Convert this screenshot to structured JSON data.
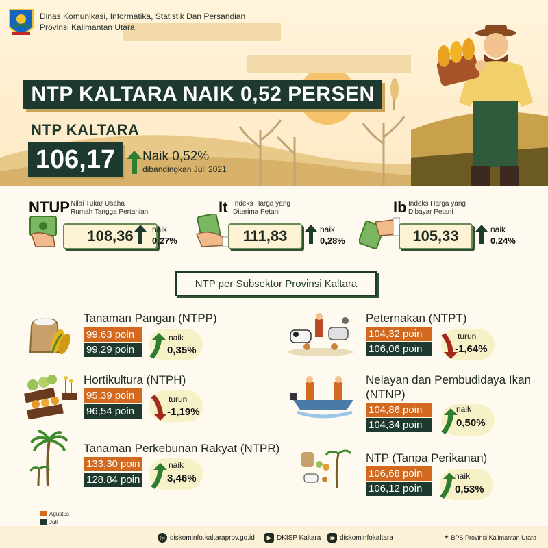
{
  "agency": {
    "line1": "Dinas Komunikasi, Informatika, Statistik Dan Persandian",
    "line2": "Provinsi Kalimantan Utara"
  },
  "headline": "NTP KALTARA NAIK 0,52 PERSEN",
  "ntp": {
    "label": "NTP KALTARA",
    "value": "106,17",
    "change": "Naik 0,52%",
    "compare": "dibandingkan Juli 2021"
  },
  "indices": [
    {
      "abbr": "NTUP",
      "desc1": "Nilai Tukar Usaha",
      "desc2": "Rumah Tangga Pertanian",
      "value": "108,36",
      "direction": "naik",
      "pct": "0,27%"
    },
    {
      "abbr": "It",
      "desc1": "Indeks Harga yang",
      "desc2": "Diterima Petani",
      "value": "111,83",
      "direction": "naik",
      "pct": "0,28%"
    },
    {
      "abbr": "Ib",
      "desc1": "Indeks Harga yang",
      "desc2": "Dibayar Petani",
      "value": "105,33",
      "direction": "naik",
      "pct": "0,24%"
    }
  ],
  "subsector_title": "NTP per Subsektor Provinsi Kaltara",
  "subsectors": [
    {
      "name": "Tanaman Pangan (NTPP)",
      "aug": "99,63 poin",
      "jul": "99,29 poin",
      "direction": "naik",
      "pct": "0,35%"
    },
    {
      "name": "Hortikultura (NTPH)",
      "aug": "95,39 poin",
      "jul": "96,54 poin",
      "direction": "turun",
      "pct": "-1,19%"
    },
    {
      "name": "Tanaman Perkebunan Rakyat (NTPR)",
      "aug": "133,30 poin",
      "jul": "128,84 poin",
      "direction": "naik",
      "pct": "3,46%"
    },
    {
      "name": "Peternakan (NTPT)",
      "aug": "104,32 poin",
      "jul": "106,06 poin",
      "direction": "turun",
      "pct": "-1,64%"
    },
    {
      "name_line1": "Nelayan dan Pembudidaya Ikan",
      "name_line2": "(NTNP)",
      "aug": "104,86 poin",
      "jul": "104,34 poin",
      "direction": "naik",
      "pct": "0,50%"
    },
    {
      "name": "NTP (Tanpa Perikanan)",
      "aug": "106,68 poin",
      "jul": "106,12 poin",
      "direction": "naik",
      "pct": "0,53%"
    }
  ],
  "legend": {
    "aug": "Agustus",
    "jul": "Juli"
  },
  "footer": {
    "web": "diskominfo.kaltaraprov.go.id",
    "youtube": "DKISP Kaltara",
    "instagram": "diskominfokaltara",
    "source": "BPS Provinsi Kalimantan Utara"
  },
  "colors": {
    "dark_green": "#1e3a2e",
    "orange": "#d2691e",
    "up_green": "#2e7d32",
    "down_red": "#a12a1a",
    "cream": "#fffaf0"
  }
}
